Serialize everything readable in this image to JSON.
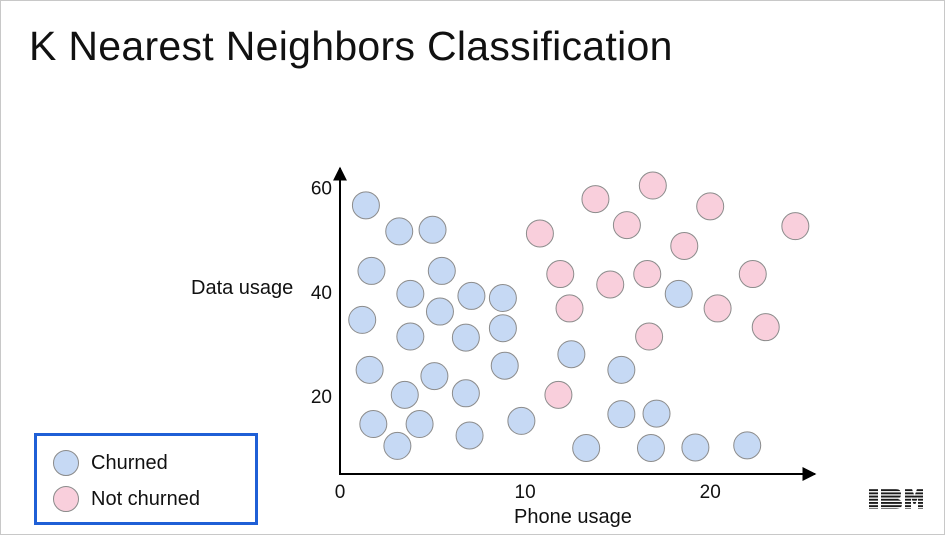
{
  "slide": {
    "title": "K Nearest Neighbors Classification",
    "logo_text": "IBM"
  },
  "legend": {
    "items": [
      {
        "label": "Churned",
        "color": "#c6d9f4"
      },
      {
        "label": "Not churned",
        "color": "#f9cfdc"
      }
    ]
  },
  "chart_data": {
    "type": "scatter",
    "title": "",
    "xlabel": "Phone usage",
    "ylabel": "Data usage",
    "xlim": [
      0,
      25.5
    ],
    "ylim": [
      5,
      63
    ],
    "x_ticks": [
      0,
      10,
      20
    ],
    "y_ticks": [
      20,
      40,
      60
    ],
    "grid": false,
    "legend_placement": "bottom-left",
    "series": [
      {
        "name": "Churned",
        "color": "#c6d9f4",
        "points": [
          [
            1.4,
            56.6
          ],
          [
            3.2,
            51.6
          ],
          [
            5.0,
            51.9
          ],
          [
            1.7,
            44.0
          ],
          [
            5.5,
            44.0
          ],
          [
            3.8,
            39.6
          ],
          [
            7.1,
            39.2
          ],
          [
            8.8,
            38.8
          ],
          [
            1.2,
            34.6
          ],
          [
            5.4,
            36.2
          ],
          [
            3.8,
            31.4
          ],
          [
            6.8,
            31.2
          ],
          [
            8.8,
            33.0
          ],
          [
            1.6,
            25.0
          ],
          [
            5.1,
            23.8
          ],
          [
            8.9,
            25.8
          ],
          [
            3.5,
            20.2
          ],
          [
            6.8,
            20.5
          ],
          [
            1.8,
            14.6
          ],
          [
            4.3,
            14.6
          ],
          [
            3.1,
            10.4
          ],
          [
            7.0,
            12.4
          ],
          [
            9.8,
            15.2
          ],
          [
            12.5,
            28.0
          ],
          [
            15.2,
            25.0
          ],
          [
            15.2,
            16.5
          ],
          [
            17.1,
            16.6
          ],
          [
            18.3,
            39.6
          ],
          [
            13.3,
            10.0
          ],
          [
            16.8,
            10.0
          ],
          [
            19.2,
            10.1
          ],
          [
            22.0,
            10.5
          ]
        ]
      },
      {
        "name": "Not churned",
        "color": "#f9cfdc",
        "points": [
          [
            10.8,
            51.2
          ],
          [
            13.8,
            57.8
          ],
          [
            16.9,
            60.4
          ],
          [
            15.5,
            52.8
          ],
          [
            20.0,
            56.4
          ],
          [
            18.6,
            48.8
          ],
          [
            24.6,
            52.6
          ],
          [
            11.9,
            43.4
          ],
          [
            14.6,
            41.4
          ],
          [
            16.6,
            43.4
          ],
          [
            22.3,
            43.4
          ],
          [
            12.4,
            36.8
          ],
          [
            20.4,
            36.8
          ],
          [
            23.0,
            33.2
          ],
          [
            16.7,
            31.4
          ],
          [
            11.8,
            20.2
          ]
        ]
      }
    ]
  }
}
